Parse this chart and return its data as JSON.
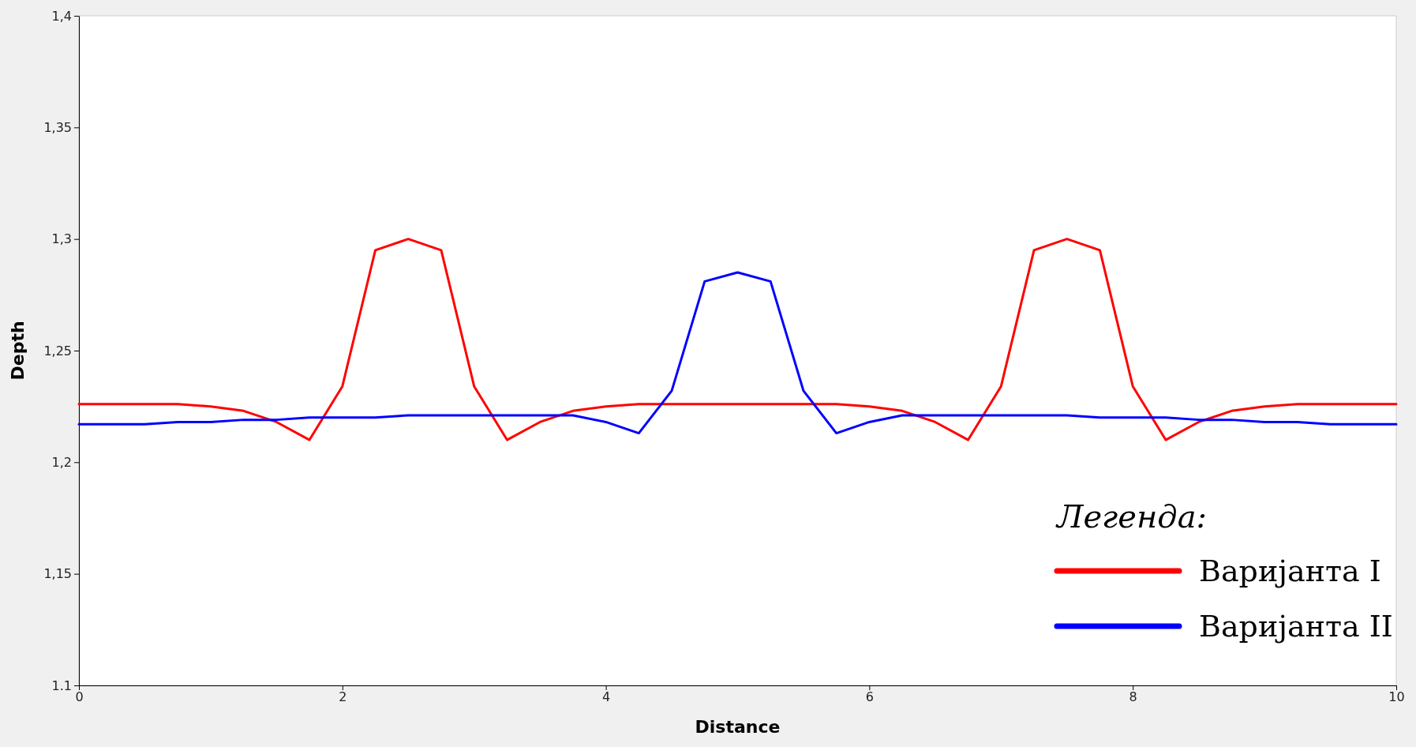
{
  "chart_data": {
    "type": "line",
    "xlabel": "Distance",
    "ylabel": "Depth",
    "legend_title": "Легенда:",
    "legend": "bottom right",
    "grid": false,
    "marker": "none",
    "line_style": "solid",
    "x": [
      0,
      0.25,
      0.5,
      0.75,
      1,
      1.25,
      1.5,
      1.75,
      2,
      2.25,
      2.5,
      2.75,
      3,
      3.25,
      3.5,
      3.75,
      4,
      4.25,
      4.5,
      4.75,
      5,
      5.25,
      5.5,
      5.75,
      6,
      6.25,
      6.5,
      6.75,
      7,
      7.25,
      7.5,
      7.75,
      8,
      8.25,
      8.5,
      8.75,
      9,
      9.25,
      9.5,
      9.75,
      10
    ],
    "xlim": [
      0,
      10
    ],
    "xticks": [
      0,
      2,
      4,
      6,
      8,
      10
    ],
    "ylim": [
      1.1,
      1.4
    ],
    "yticks": [
      {
        "value": 1.1,
        "label": "1.1"
      },
      {
        "value": 1.15,
        "label": "1,15"
      },
      {
        "value": 1.2,
        "label": "1,2"
      },
      {
        "value": 1.25,
        "label": "1,25"
      },
      {
        "value": 1.3,
        "label": "1,3"
      },
      {
        "value": 1.35,
        "label": "1,35"
      },
      {
        "value": 1.4,
        "label": "1,4"
      }
    ],
    "series": [
      {
        "name": "Варијанта I",
        "color": "#ff0000",
        "values": [
          1.226,
          1.226,
          1.226,
          1.226,
          1.225,
          1.223,
          1.218,
          1.21,
          1.234,
          1.295,
          1.3,
          1.295,
          1.234,
          1.21,
          1.218,
          1.223,
          1.225,
          1.226,
          1.226,
          1.226,
          1.226,
          1.226,
          1.226,
          1.226,
          1.225,
          1.223,
          1.218,
          1.21,
          1.234,
          1.295,
          1.3,
          1.295,
          1.234,
          1.21,
          1.218,
          1.223,
          1.225,
          1.226,
          1.226,
          1.226,
          1.226
        ]
      },
      {
        "name": "Варијанта II",
        "color": "#0000ff",
        "values": [
          1.217,
          1.217,
          1.217,
          1.218,
          1.218,
          1.219,
          1.219,
          1.22,
          1.22,
          1.22,
          1.221,
          1.221,
          1.221,
          1.221,
          1.221,
          1.221,
          1.218,
          1.213,
          1.232,
          1.281,
          1.285,
          1.281,
          1.232,
          1.213,
          1.218,
          1.221,
          1.221,
          1.221,
          1.221,
          1.221,
          1.221,
          1.22,
          1.22,
          1.22,
          1.219,
          1.219,
          1.218,
          1.218,
          1.217,
          1.217,
          1.217
        ]
      }
    ]
  }
}
